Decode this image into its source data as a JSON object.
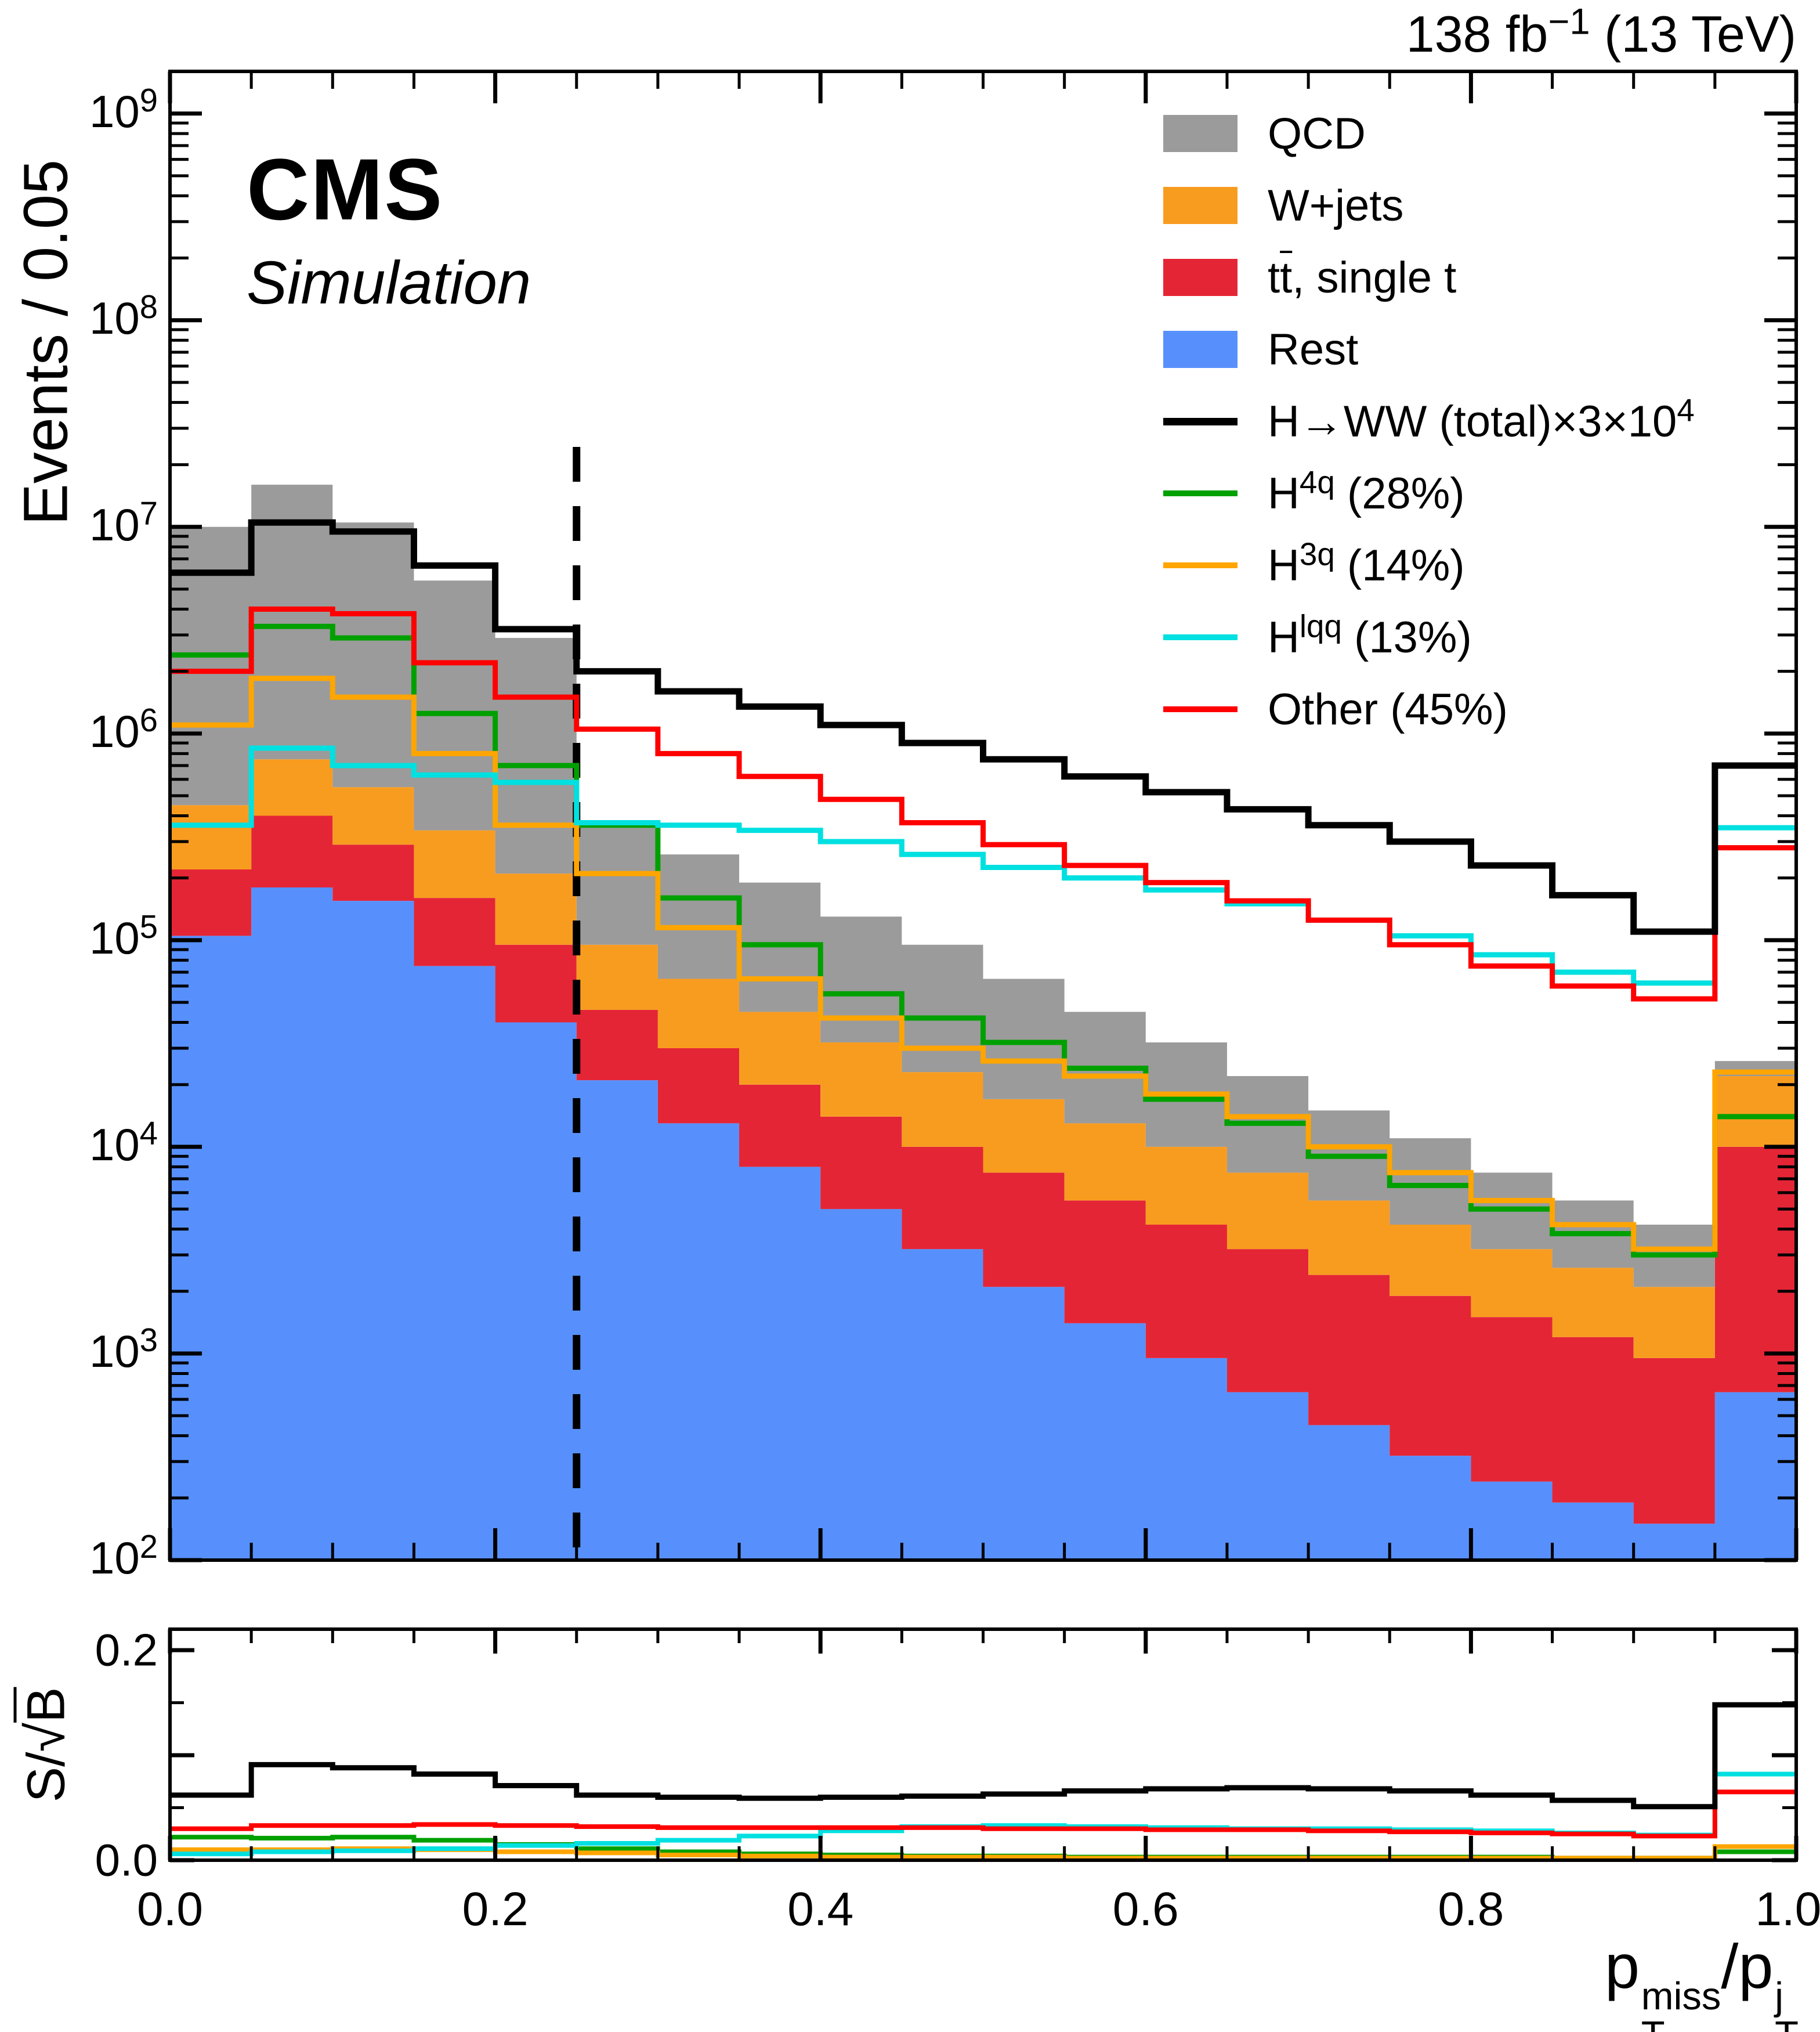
{
  "header": {
    "lumi_tokens": [
      {
        "t": "138 fb"
      },
      {
        "t": "−1",
        "sup": true
      },
      {
        "t": " (13 TeV)"
      }
    ],
    "experiment": "CMS",
    "experiment_sub": "Simulation"
  },
  "chart_data": {
    "type": "histogram",
    "description": "Stacked background histograms (log-y) with overlaid signal step lines and S/sqrt(B) ratio panel, 20 bins of 0.05",
    "x": {
      "min": 0.0,
      "max": 1.0,
      "bin_width": 0.05,
      "tick_labels": [
        {
          "v": 0.0,
          "label": "0.0"
        },
        {
          "v": 0.2,
          "label": "0.2"
        },
        {
          "v": 0.4,
          "label": "0.4"
        },
        {
          "v": 0.6,
          "label": "0.6"
        },
        {
          "v": 0.8,
          "label": "0.8"
        },
        {
          "v": 1.0,
          "label": "1.0"
        }
      ],
      "title_tokens": [
        {
          "t": "p"
        },
        {
          "sup": "miss",
          "sub": "T"
        },
        {
          "t": "/p"
        },
        {
          "sup": "j",
          "sub": "T"
        }
      ]
    },
    "main_panel": {
      "ylabel": "Events / 0.05",
      "yscale": "log",
      "ylim": [
        100,
        1600000000
      ],
      "ytick_exponents": [
        2,
        3,
        4,
        5,
        6,
        7,
        8,
        9
      ],
      "cut_line_x": 0.25,
      "stack": [
        {
          "name": "rest",
          "label": "Rest",
          "color": "#5790fc",
          "values": [
            105000,
            180000,
            155000,
            75000,
            40000,
            21000,
            13000,
            8000,
            5000,
            3200,
            2100,
            1400,
            950,
            650,
            450,
            320,
            240,
            190,
            150,
            650
          ]
        },
        {
          "name": "ttbar",
          "label": "ttbar, single t",
          "color": "#e42536",
          "values": [
            115000,
            220000,
            135000,
            85000,
            55000,
            25000,
            17000,
            12000,
            9000,
            6800,
            5400,
            4100,
            3250,
            2550,
            1950,
            1580,
            1260,
            1010,
            800,
            9350
          ]
        },
        {
          "name": "wjets",
          "label": "W+jets",
          "color": "#f89c20",
          "values": [
            230000,
            350000,
            260000,
            180000,
            115000,
            49000,
            35000,
            25000,
            18000,
            13000,
            9500,
            7500,
            5800,
            4300,
            3100,
            2300,
            1700,
            1400,
            1150,
            12000
          ]
        },
        {
          "name": "qcd",
          "label": "QCD",
          "color": "#9b9b9b",
          "values": [
            9550000,
            15250000,
            9950000,
            5160000,
            2690000,
            265000,
            195000,
            145000,
            98000,
            72000,
            48000,
            32000,
            22000,
            14500,
            9500,
            6800,
            4300,
            2900,
            2100,
            4000
          ]
        }
      ],
      "lines": [
        {
          "name": "h4q",
          "label": "H4q (28%)",
          "color": "#00a000",
          "values": [
            2400000,
            3300000,
            2900000,
            1250000,
            700000,
            360000,
            160000,
            95000,
            55000,
            42000,
            32000,
            24000,
            17000,
            13000,
            9000,
            6500,
            5000,
            3800,
            3000,
            14000
          ]
        },
        {
          "name": "h3q",
          "label": "H3q (14%)",
          "color": "#ffa500",
          "values": [
            1100000,
            1850000,
            1500000,
            800000,
            360000,
            210000,
            115000,
            65000,
            42000,
            30000,
            26000,
            22000,
            18000,
            14000,
            10000,
            7500,
            5500,
            4200,
            3200,
            23000
          ]
        },
        {
          "name": "hlqq",
          "label": "Hlqq (13%)",
          "color": "#00e0e0",
          "values": [
            360000,
            850000,
            700000,
            630000,
            580000,
            370000,
            360000,
            340000,
            300000,
            260000,
            225000,
            200000,
            175000,
            150000,
            125000,
            105000,
            85000,
            70000,
            62000,
            350000
          ]
        },
        {
          "name": "other",
          "label": "Other (45%)",
          "color": "#ff0000",
          "values": [
            2000000,
            4000000,
            3800000,
            2200000,
            1500000,
            1050000,
            800000,
            620000,
            480000,
            370000,
            290000,
            230000,
            190000,
            155000,
            125000,
            95000,
            75000,
            60000,
            52000,
            280000
          ]
        },
        {
          "name": "hww_total",
          "label": "H→WW (total)×3×10^4",
          "color": "#000000",
          "values": [
            6000000,
            10500000,
            9500000,
            6500000,
            3200000,
            2000000,
            1600000,
            1350000,
            1100000,
            900000,
            750000,
            620000,
            520000,
            430000,
            360000,
            300000,
            230000,
            165000,
            110000,
            700000
          ]
        }
      ]
    },
    "ratio_panel": {
      "ylabel_tokens": [
        {
          "t": "S/"
        },
        {
          "t": "√"
        },
        {
          "t": "B",
          "ol": true
        }
      ],
      "ylim": [
        0,
        0.22
      ],
      "ytick_major": [
        0.0,
        0.1,
        0.2
      ],
      "ytick_minor": [
        0.05,
        0.15
      ],
      "ytick_labels": [
        {
          "v": 0.0,
          "label": "0.0"
        },
        {
          "v": 0.2,
          "label": "0.2"
        }
      ],
      "lines": [
        {
          "name": "h4q",
          "color": "#00a000",
          "values": [
            0.022,
            0.021,
            0.022,
            0.019,
            0.015,
            0.011,
            0.008,
            0.006,
            0.005,
            0.004,
            0.004,
            0.003,
            0.003,
            0.003,
            0.003,
            0.003,
            0.003,
            0.002,
            0.002,
            0.008
          ]
        },
        {
          "name": "h3q",
          "color": "#ffa500",
          "values": [
            0.01,
            0.01,
            0.011,
            0.01,
            0.008,
            0.007,
            0.005,
            0.004,
            0.003,
            0.003,
            0.003,
            0.002,
            0.002,
            0.002,
            0.002,
            0.002,
            0.002,
            0.002,
            0.002,
            0.013
          ]
        },
        {
          "name": "hlqq",
          "color": "#00e0e0",
          "values": [
            0.006,
            0.008,
            0.009,
            0.011,
            0.014,
            0.016,
            0.019,
            0.023,
            0.028,
            0.032,
            0.033,
            0.032,
            0.031,
            0.03,
            0.03,
            0.029,
            0.028,
            0.026,
            0.024,
            0.082
          ]
        },
        {
          "name": "other",
          "color": "#ff0000",
          "values": [
            0.03,
            0.033,
            0.033,
            0.034,
            0.033,
            0.032,
            0.031,
            0.031,
            0.031,
            0.031,
            0.03,
            0.03,
            0.029,
            0.029,
            0.028,
            0.027,
            0.026,
            0.025,
            0.023,
            0.065
          ]
        },
        {
          "name": "hww_total",
          "color": "#000000",
          "values": [
            0.062,
            0.091,
            0.088,
            0.082,
            0.071,
            0.062,
            0.06,
            0.059,
            0.06,
            0.061,
            0.063,
            0.066,
            0.068,
            0.069,
            0.068,
            0.066,
            0.062,
            0.057,
            0.051,
            0.148
          ]
        }
      ]
    },
    "legend": [
      {
        "name": "qcd",
        "type": "fill",
        "color": "#9b9b9b",
        "tokens": [
          {
            "t": "QCD"
          }
        ]
      },
      {
        "name": "wjets",
        "type": "fill",
        "color": "#f89c20",
        "tokens": [
          {
            "t": "W+jets"
          }
        ]
      },
      {
        "name": "ttbar",
        "type": "fill",
        "color": "#e42536",
        "tokens": [
          {
            "t": "t"
          },
          {
            "t": "t",
            "ol": true
          },
          {
            "t": ", single t"
          }
        ]
      },
      {
        "name": "rest",
        "type": "fill",
        "color": "#5790fc",
        "tokens": [
          {
            "t": "Rest"
          }
        ]
      },
      {
        "name": "hww_total",
        "type": "line",
        "color": "#000000",
        "tokens": [
          {
            "t": "H→WW (total)×3×10"
          },
          {
            "t": "4",
            "sup": true
          }
        ]
      },
      {
        "name": "h4q",
        "type": "line",
        "color": "#00a000",
        "tokens": [
          {
            "t": "H"
          },
          {
            "t": "4q",
            "sup": true
          },
          {
            "t": " (28%)"
          }
        ]
      },
      {
        "name": "h3q",
        "type": "line",
        "color": "#ffa500",
        "tokens": [
          {
            "t": "H"
          },
          {
            "t": "3q",
            "sup": true
          },
          {
            "t": " (14%)"
          }
        ]
      },
      {
        "name": "hlqq",
        "type": "line",
        "color": "#00e0e0",
        "tokens": [
          {
            "t": "H"
          },
          {
            "t": "lqq",
            "sup": true
          },
          {
            "t": " (13%)"
          }
        ]
      },
      {
        "name": "other",
        "type": "line",
        "color": "#ff0000",
        "tokens": [
          {
            "t": "Other (45%)"
          }
        ]
      }
    ]
  }
}
